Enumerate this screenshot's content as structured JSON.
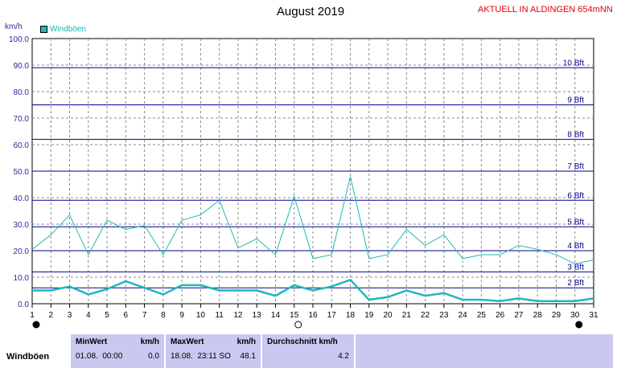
{
  "title": "August 2019",
  "station": "AKTUELL IN ALDINGEN 654mNN",
  "unit": "km/h",
  "legend": {
    "label": "Windböen",
    "color": "#20b8b8"
  },
  "chart_data": {
    "type": "line",
    "title": "August 2019",
    "ylabel": "km/h",
    "ylim": [
      0,
      100
    ],
    "yticks": [
      "0.0",
      "10.0",
      "20.0",
      "30.0",
      "40.0",
      "50.0",
      "60.0",
      "70.0",
      "80.0",
      "90.0",
      "100.0"
    ],
    "categories": [
      "1",
      "2",
      "3",
      "4",
      "5",
      "6",
      "7",
      "8",
      "9",
      "10",
      "11",
      "12",
      "13",
      "14",
      "15",
      "16",
      "17",
      "18",
      "19",
      "20",
      "21",
      "22",
      "23",
      "24",
      "25",
      "26",
      "27",
      "28",
      "29",
      "30",
      "31"
    ],
    "series": [
      {
        "name": "Windböen",
        "color": "#20b8b8",
        "values": [
          20.5,
          26,
          33.5,
          18.5,
          31.5,
          28,
          29.5,
          18.5,
          31.5,
          33.5,
          39,
          21,
          24.5,
          18.5,
          40.5,
          17,
          18.5,
          48,
          17,
          18.5,
          28,
          22,
          26,
          17,
          18.5,
          18.5,
          22,
          20.5,
          18.5,
          15,
          16.5
        ]
      },
      {
        "color": "#20b8b8",
        "values": [
          5,
          5,
          6.5,
          3.5,
          5.5,
          8.5,
          6,
          3.5,
          7,
          7,
          5,
          5,
          5,
          3,
          7,
          5,
          6.5,
          9,
          1.5,
          2.5,
          5,
          3,
          4,
          1.5,
          1.5,
          1,
          2,
          1,
          1,
          1,
          2
        ]
      }
    ],
    "beaufort": [
      {
        "label": "2 Bft",
        "value": 6
      },
      {
        "label": "3 Bft",
        "value": 12
      },
      {
        "label": "4 Bft",
        "value": 20
      },
      {
        "label": "5 Bft",
        "value": 29
      },
      {
        "label": "6 Bft",
        "value": 39
      },
      {
        "label": "7 Bft",
        "value": 50
      },
      {
        "label": "8 Bft",
        "value": 62
      },
      {
        "label": "9 Bft",
        "value": 75
      },
      {
        "label": "10 Bft",
        "value": 89
      }
    ],
    "grid": true
  },
  "stats": {
    "row_label": "Windböen",
    "min_header": "MinWert",
    "min_unit": "km/h",
    "min_date": "01.08.  00:00",
    "min_value": "0.0",
    "max_header": "MaxWert",
    "max_unit": "km/h",
    "max_date": "18.08.  23:11 SO",
    "max_value": "48.1",
    "avg_header": "Durchschnitt km/h",
    "avg_value": "4.2"
  }
}
